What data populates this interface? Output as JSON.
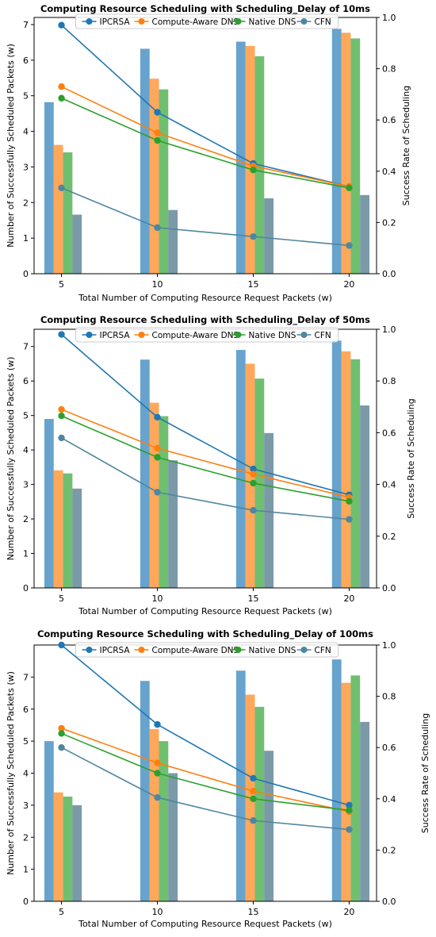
{
  "colors": {
    "bar": [
      "#1f77b4",
      "#ff7f0e",
      "#2ca02c",
      "#3d6a80"
    ],
    "line": [
      "#1f77b4",
      "#ff7f0e",
      "#2ca02c",
      "#4f86a0"
    ]
  },
  "chart_data": [
    {
      "type": "bar+line",
      "title": "Computing Resource Scheduling with Scheduling_Delay of 10ms",
      "xlabel": "Total Number of Computing Resource Request Packets (w)",
      "ylabel": "Number of Successfully Scheduled Packets (w)",
      "y2label": "Success Rate of Scheduling",
      "categories": [
        "5",
        "10",
        "15",
        "20"
      ],
      "ylim": [
        0,
        7.2
      ],
      "yticks": [
        0,
        1,
        2,
        3,
        4,
        5,
        6,
        7
      ],
      "y2lim": [
        0,
        1.0
      ],
      "y2ticks": [
        "0.0",
        "0.2",
        "0.4",
        "0.6",
        "0.8",
        "1.0"
      ],
      "legend": [
        "IPCRSA",
        "Compute-Aware DNS",
        "Native DNS",
        "CFN"
      ],
      "legend_position": "top-center",
      "bars": [
        [
          4.82,
          6.32,
          6.52,
          6.88
        ],
        [
          3.62,
          5.48,
          6.4,
          6.77
        ],
        [
          3.41,
          5.18,
          6.11,
          6.61
        ],
        [
          1.66,
          1.79,
          2.12,
          2.21
        ]
      ],
      "rates": [
        [
          0.97,
          0.63,
          0.43,
          0.34
        ],
        [
          0.73,
          0.55,
          0.42,
          0.34
        ],
        [
          0.685,
          0.52,
          0.405,
          0.335
        ],
        [
          0.335,
          0.18,
          0.145,
          0.11
        ]
      ]
    },
    {
      "type": "bar+line",
      "title": "Computing Resource Scheduling with Scheduling_Delay of 50ms",
      "xlabel": "Total Number of Computing Resource Request Packets (w)",
      "ylabel": "Number of Successfully Scheduled Packets (w)",
      "y2label": "Success Rate of Scheduling",
      "categories": [
        "5",
        "10",
        "15",
        "20"
      ],
      "ylim": [
        0,
        7.5
      ],
      "yticks": [
        0,
        1,
        2,
        3,
        4,
        5,
        6,
        7
      ],
      "y2lim": [
        0,
        1.0
      ],
      "y2ticks": [
        "0.0",
        "0.2",
        "0.4",
        "0.6",
        "0.8",
        "1.0"
      ],
      "legend": [
        "IPCRSA",
        "Compute-Aware DNS",
        "Native DNS",
        "CFN"
      ],
      "legend_position": "top-center",
      "bars": [
        [
          4.9,
          6.62,
          6.9,
          7.17
        ],
        [
          3.41,
          5.37,
          6.5,
          6.86
        ],
        [
          3.32,
          4.98,
          6.07,
          6.63
        ],
        [
          2.88,
          3.7,
          4.49,
          5.29
        ]
      ],
      "rates": [
        [
          0.98,
          0.66,
          0.46,
          0.36
        ],
        [
          0.69,
          0.54,
          0.44,
          0.35
        ],
        [
          0.665,
          0.505,
          0.405,
          0.335
        ],
        [
          0.58,
          0.37,
          0.3,
          0.265
        ]
      ]
    },
    {
      "type": "bar+line",
      "title": "Computing Resource Scheduling with Scheduling_Delay of 100ms",
      "xlabel": "Total Number of Computing Resource Request Packets (w)",
      "ylabel": "Number of Successfully Scheduled Packets (w)",
      "y2label": "Success Rate of Scheduling",
      "categories": [
        "5",
        "10",
        "15",
        "20"
      ],
      "ylim": [
        0,
        8.0
      ],
      "yticks": [
        0,
        1,
        2,
        3,
        4,
        5,
        6,
        7
      ],
      "y2lim": [
        0,
        1.0
      ],
      "y2ticks": [
        "0.0",
        "0.2",
        "0.4",
        "0.6",
        "0.8",
        "1.0"
      ],
      "legend": [
        "IPCRSA",
        "Compute-Aware DNS",
        "Native DNS",
        "CFN"
      ],
      "legend_position": "top-center",
      "bars": [
        [
          5.0,
          6.88,
          7.2,
          7.55
        ],
        [
          3.4,
          5.38,
          6.45,
          6.82
        ],
        [
          3.27,
          5.0,
          6.07,
          7.05
        ],
        [
          3.0,
          4.0,
          4.7,
          5.6
        ]
      ],
      "rates": [
        [
          1.0,
          0.69,
          0.48,
          0.375
        ],
        [
          0.675,
          0.54,
          0.43,
          0.35
        ],
        [
          0.655,
          0.5,
          0.4,
          0.355
        ],
        [
          0.6,
          0.405,
          0.315,
          0.28
        ]
      ]
    }
  ]
}
